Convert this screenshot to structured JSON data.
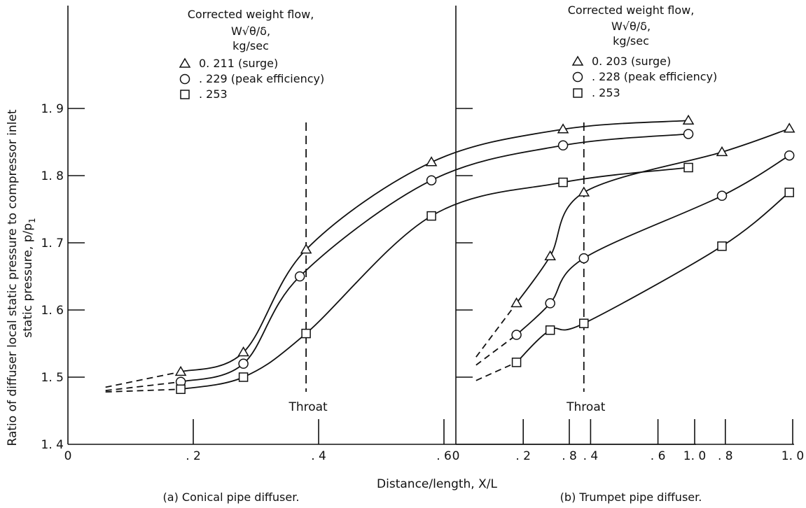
{
  "ylabel_line1": "Ratio of diffuser local static pressure to compressor inlet",
  "ylabel_line2": "static pressure, p/p",
  "ylabel_sub": "1",
  "xlabel": "Distance/length, X/L",
  "chart_data": [
    {
      "type": "line",
      "panel": "a",
      "caption": "(a) Conical pipe diffuser.",
      "xlim": [
        0,
        1.0
      ],
      "ylim": [
        1.4,
        1.9
      ],
      "x_ticks": [
        "0",
        ". 2",
        ". 4",
        ". 6",
        ". 8",
        "1. 0"
      ],
      "y_ticks": [
        "1. 4",
        "1. 5",
        "1. 6",
        "1. 7",
        "1. 8",
        "1. 9"
      ],
      "legend_title": [
        "Corrected weight flow,",
        "W√θ/δ,",
        "kg/sec"
      ],
      "throat_x": 0.38,
      "throat_label": "Throat",
      "series": [
        {
          "name": "0. 211 (surge)",
          "marker": "triangle",
          "x": [
            0.18,
            0.28,
            0.38,
            0.58,
            0.79,
            0.99
          ],
          "y": [
            1.508,
            1.537,
            1.69,
            1.82,
            1.869,
            1.882
          ],
          "dashed_x": [
            0.06,
            0.18
          ],
          "dashed_y": [
            1.485,
            1.508
          ]
        },
        {
          "name": ". 229 (peak efficiency)",
          "marker": "circle",
          "x": [
            0.18,
            0.28,
            0.37,
            0.58,
            0.79,
            0.99
          ],
          "y": [
            1.493,
            1.52,
            1.65,
            1.793,
            1.845,
            1.862
          ],
          "dashed_x": [
            0.06,
            0.18
          ],
          "dashed_y": [
            1.48,
            1.493
          ]
        },
        {
          "name": ". 253",
          "marker": "square",
          "x": [
            0.18,
            0.28,
            0.38,
            0.58,
            0.79,
            0.99
          ],
          "y": [
            1.482,
            1.5,
            1.565,
            1.74,
            1.79,
            1.812
          ],
          "dashed_x": [
            0.06,
            0.18
          ],
          "dashed_y": [
            1.478,
            1.482
          ]
        }
      ]
    },
    {
      "type": "line",
      "panel": "b",
      "caption": "(b) Trumpet pipe diffuser.",
      "xlim": [
        0,
        1.0
      ],
      "ylim": [
        1.4,
        1.9
      ],
      "x_ticks": [
        "0",
        ". 2",
        ". 4",
        ". 6",
        ". 8",
        "1. 0"
      ],
      "legend_title": [
        "Corrected weight flow,",
        "W√θ/δ,",
        "kg/sec"
      ],
      "throat_x": 0.38,
      "throat_label": "Throat",
      "series": [
        {
          "name": "0. 203 (surge)",
          "marker": "triangle",
          "x": [
            0.18,
            0.28,
            0.38,
            0.79,
            0.99
          ],
          "y": [
            1.61,
            1.68,
            1.775,
            1.835,
            1.87
          ],
          "dashed_x": [
            0.06,
            0.18
          ],
          "dashed_y": [
            1.53,
            1.61
          ]
        },
        {
          "name": ". 228 (peak efficiency)",
          "marker": "circle",
          "x": [
            0.18,
            0.28,
            0.38,
            0.79,
            0.99
          ],
          "y": [
            1.563,
            1.61,
            1.677,
            1.77,
            1.83
          ],
          "dashed_x": [
            0.06,
            0.18
          ],
          "dashed_y": [
            1.518,
            1.563
          ]
        },
        {
          "name": ". 253",
          "marker": "square",
          "x": [
            0.18,
            0.28,
            0.38,
            0.79,
            0.99
          ],
          "y": [
            1.522,
            1.57,
            1.58,
            1.695,
            1.775
          ],
          "dashed_x": [
            0.06,
            0.18
          ],
          "dashed_y": [
            1.495,
            1.522
          ]
        }
      ]
    }
  ]
}
